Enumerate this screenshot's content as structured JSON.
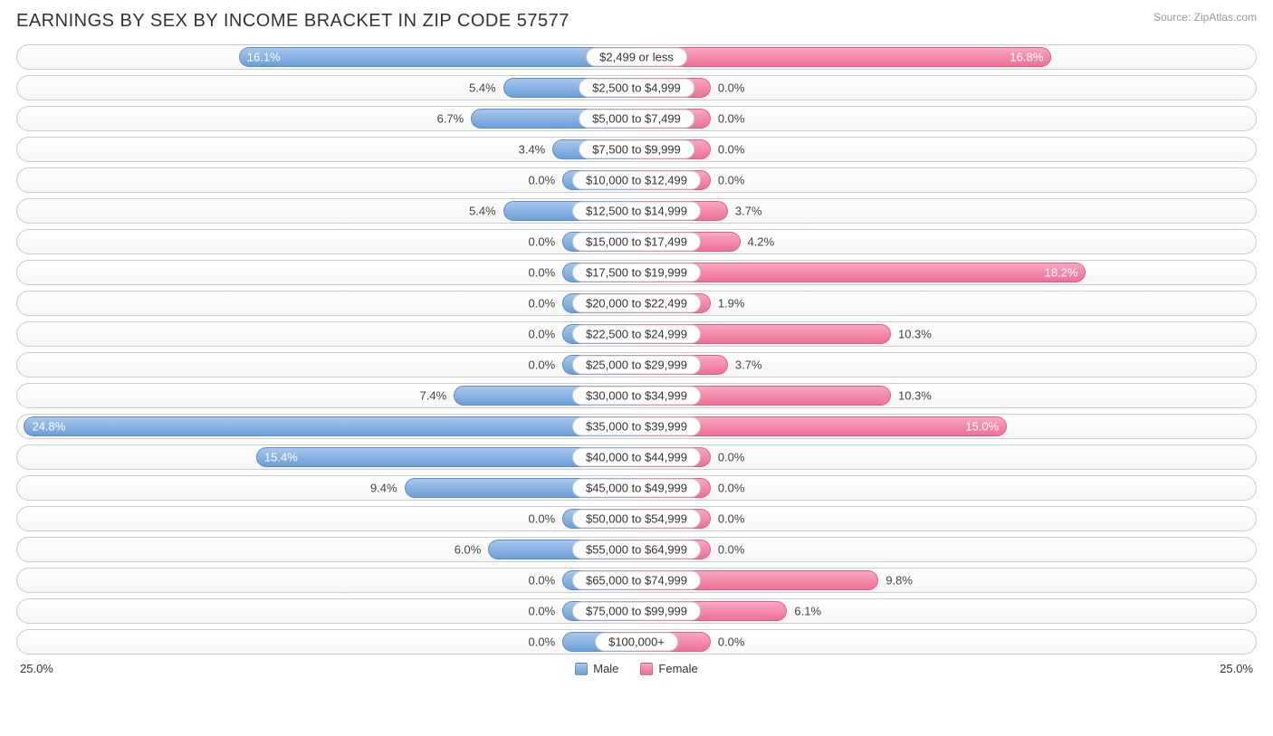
{
  "title": "EARNINGS BY SEX BY INCOME BRACKET IN ZIP CODE 57577",
  "source": "Source: ZipAtlas.com",
  "axis_max_pct": 25.0,
  "axis_label": "25.0%",
  "min_bar_pct": 3.0,
  "legend": {
    "male": "Male",
    "female": "Female"
  },
  "colors": {
    "male_top": "#a9c7ea",
    "male_bottom": "#6a9fda",
    "male_border": "#5a8fca",
    "female_top": "#f7a8c0",
    "female_bottom": "#ef6f97",
    "female_border": "#e05f87",
    "track_border": "#cccccc",
    "inside_text": "#ffffff",
    "outside_text": "#444444",
    "center_bg": "#ffffff"
  },
  "rows": [
    {
      "label": "$2,499 or less",
      "male": 16.1,
      "female": 16.8
    },
    {
      "label": "$2,500 to $4,999",
      "male": 5.4,
      "female": 0.0
    },
    {
      "label": "$5,000 to $7,499",
      "male": 6.7,
      "female": 0.0
    },
    {
      "label": "$7,500 to $9,999",
      "male": 3.4,
      "female": 0.0
    },
    {
      "label": "$10,000 to $12,499",
      "male": 0.0,
      "female": 0.0
    },
    {
      "label": "$12,500 to $14,999",
      "male": 5.4,
      "female": 3.7
    },
    {
      "label": "$15,000 to $17,499",
      "male": 0.0,
      "female": 4.2
    },
    {
      "label": "$17,500 to $19,999",
      "male": 0.0,
      "female": 18.2
    },
    {
      "label": "$20,000 to $22,499",
      "male": 0.0,
      "female": 1.9
    },
    {
      "label": "$22,500 to $24,999",
      "male": 0.0,
      "female": 10.3
    },
    {
      "label": "$25,000 to $29,999",
      "male": 0.0,
      "female": 3.7
    },
    {
      "label": "$30,000 to $34,999",
      "male": 7.4,
      "female": 10.3
    },
    {
      "label": "$35,000 to $39,999",
      "male": 24.8,
      "female": 15.0
    },
    {
      "label": "$40,000 to $44,999",
      "male": 15.4,
      "female": 0.0
    },
    {
      "label": "$45,000 to $49,999",
      "male": 9.4,
      "female": 0.0
    },
    {
      "label": "$50,000 to $54,999",
      "male": 0.0,
      "female": 0.0
    },
    {
      "label": "$55,000 to $64,999",
      "male": 6.0,
      "female": 0.0
    },
    {
      "label": "$65,000 to $74,999",
      "male": 0.0,
      "female": 9.8
    },
    {
      "label": "$75,000 to $99,999",
      "male": 0.0,
      "female": 6.1
    },
    {
      "label": "$100,000+",
      "male": 0.0,
      "female": 0.0
    }
  ]
}
